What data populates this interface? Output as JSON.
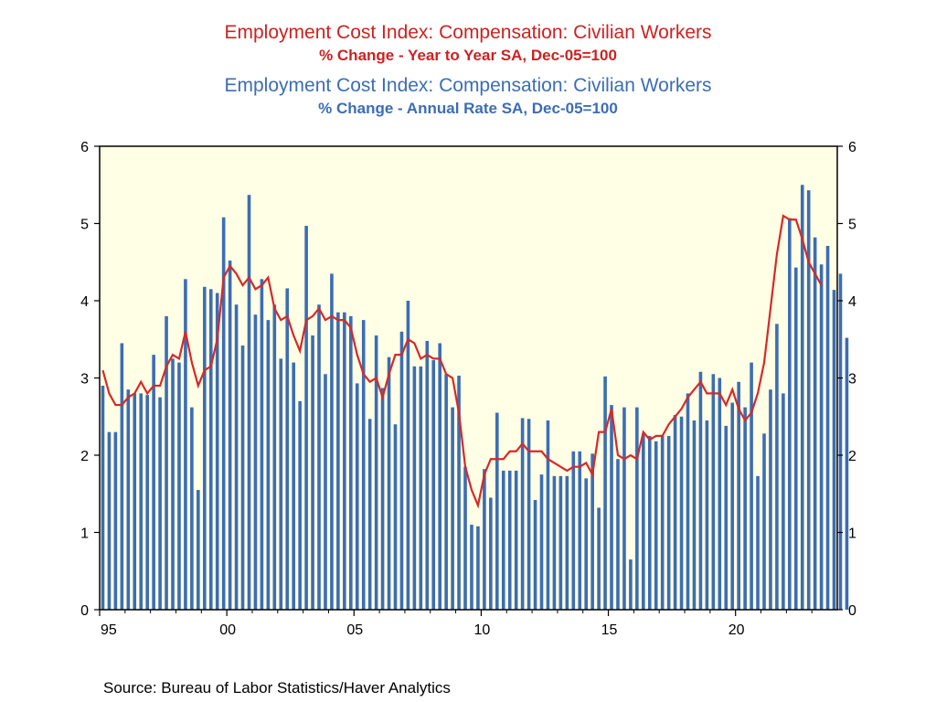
{
  "titles": {
    "red_title": "Employment Cost Index: Compensation: Civilian Workers",
    "red_subtitle": "% Change - Year to Year    SA, Dec-05=100",
    "blue_title": "Employment Cost Index: Compensation: Civilian Workers",
    "blue_subtitle": "% Change - Annual Rate    SA, Dec-05=100"
  },
  "source": "Source:  Bureau of Labor Statistics/Haver Analytics",
  "colors": {
    "bar": "#3c6db3",
    "line": "#d42a2a",
    "plot_bg": "#ffffe5"
  },
  "chart_data": {
    "type": "bar",
    "x_start_year": 1995,
    "x_end_year": 2024,
    "frequency": "quarterly",
    "x_tick_labels": [
      "95",
      "00",
      "05",
      "10",
      "15",
      "20"
    ],
    "x_tick_years": [
      1995,
      2000,
      2005,
      2010,
      2015,
      2020
    ],
    "y_ticks": [
      0,
      1,
      2,
      3,
      4,
      5,
      6
    ],
    "ylim": [
      0,
      6
    ],
    "y2lim": [
      0,
      6
    ],
    "grid": false,
    "series": [
      {
        "name": "Employment Cost Index: Compensation: Civilian Workers % Change - Annual Rate SA, Dec-05=100",
        "type": "bar",
        "start_date": "1995-Q1",
        "values": [
          2.9,
          2.3,
          2.3,
          3.45,
          2.85,
          2.8,
          2.8,
          2.78,
          3.3,
          2.75,
          3.8,
          3.25,
          3.2,
          4.28,
          2.62,
          1.55,
          4.18,
          4.15,
          4.1,
          5.08,
          4.52,
          3.95,
          3.42,
          5.37,
          3.82,
          4.28,
          3.75,
          3.95,
          3.25,
          4.16,
          3.2,
          2.7,
          4.97,
          3.55,
          3.95,
          3.05,
          4.35,
          3.85,
          3.85,
          3.8,
          2.93,
          3.75,
          2.47,
          3.55,
          2.87,
          3.27,
          2.4,
          3.6,
          4.0,
          3.15,
          3.15,
          3.48,
          3.23,
          3.45,
          3.05,
          2.62,
          3.03,
          1.85,
          1.1,
          1.08,
          1.82,
          1.45,
          2.55,
          1.8,
          1.8,
          1.8,
          2.48,
          2.47,
          1.42,
          1.75,
          2.45,
          1.73,
          1.73,
          1.73,
          2.05,
          2.05,
          1.7,
          2.02,
          1.32,
          3.02,
          2.65,
          1.95,
          2.62,
          0.65,
          2.62,
          2.28,
          2.25,
          2.18,
          2.25,
          2.25,
          2.52,
          2.5,
          2.8,
          2.45,
          3.08,
          2.45,
          3.05,
          3.0,
          2.38,
          2.68,
          2.95,
          2.62,
          3.2,
          1.73,
          2.28,
          2.85,
          3.7,
          2.8,
          5.07,
          4.43,
          5.5,
          5.43,
          4.82,
          4.47,
          4.71,
          4.14,
          4.35,
          3.52
        ]
      },
      {
        "name": "Employment Cost Index: Compensation: Civilian Workers % Change - Year to Year SA, Dec-05=100",
        "type": "line",
        "start_date": "1995-Q1",
        "values": [
          3.1,
          2.8,
          2.65,
          2.65,
          2.75,
          2.8,
          2.95,
          2.8,
          2.9,
          2.9,
          3.15,
          3.3,
          3.25,
          3.6,
          3.2,
          2.9,
          3.1,
          3.15,
          3.5,
          4.3,
          4.45,
          4.35,
          4.2,
          4.3,
          4.15,
          4.2,
          4.3,
          3.9,
          3.75,
          3.8,
          3.55,
          3.35,
          3.75,
          3.8,
          3.9,
          3.75,
          3.8,
          3.75,
          3.75,
          3.65,
          3.3,
          3.05,
          2.95,
          3.0,
          2.75,
          3.05,
          3.3,
          3.3,
          3.5,
          3.45,
          3.25,
          3.3,
          3.25,
          3.25,
          3.05,
          3.0,
          2.55,
          1.85,
          1.55,
          1.35,
          1.75,
          1.95,
          1.95,
          1.95,
          2.05,
          2.05,
          2.15,
          2.05,
          2.05,
          2.05,
          1.95,
          1.9,
          1.85,
          1.8,
          1.85,
          1.85,
          1.9,
          1.75,
          2.3,
          2.3,
          2.6,
          2.0,
          1.95,
          2.0,
          1.95,
          2.3,
          2.2,
          2.25,
          2.25,
          2.4,
          2.5,
          2.6,
          2.75,
          2.85,
          2.95,
          2.8,
          2.8,
          2.8,
          2.65,
          2.85,
          2.6,
          2.45,
          2.55,
          2.8,
          3.2,
          3.9,
          4.6,
          5.1,
          5.05,
          5.05,
          4.8,
          4.5,
          4.35,
          4.2
        ]
      }
    ]
  }
}
